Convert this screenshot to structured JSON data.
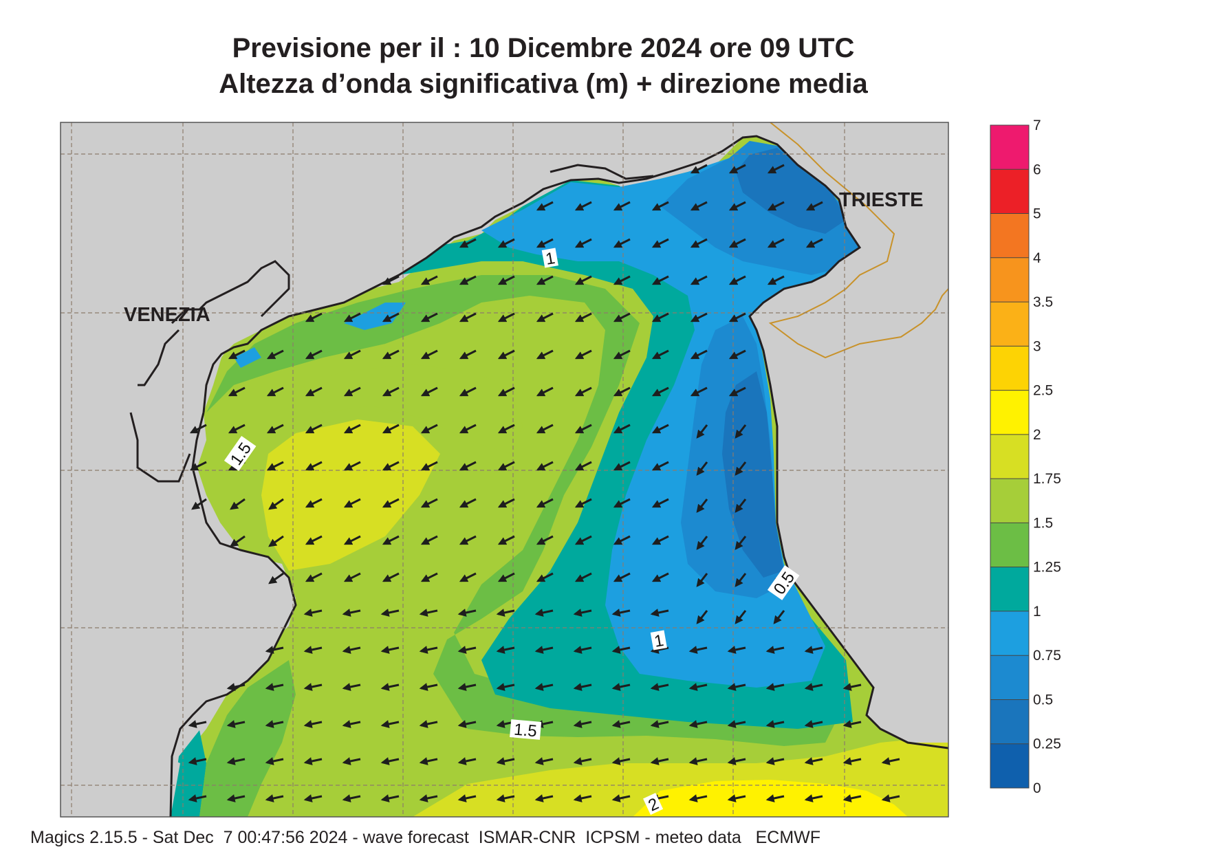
{
  "title": {
    "line1": "Previsione per il  :  10 Dicembre  2024   ore 09 UTC",
    "line2": "Altezza d’onda significativa (m) + direzione media"
  },
  "cities": {
    "venezia": "VENEZIA",
    "trieste": "TRIESTE"
  },
  "contour_labels": {
    "c1_north": "1",
    "c15_west": "1.5",
    "c05_east": "0.5",
    "c1_south": "1",
    "c15_south": "1.5",
    "c2_south": "2"
  },
  "colorbar": {
    "ticks": [
      "7",
      "6",
      "5",
      "4",
      "3.5",
      "3",
      "2.5",
      "2",
      "1.75",
      "1.5",
      "1.25",
      "1",
      "0.75",
      "0.5",
      "0.25",
      "0"
    ],
    "colors": [
      "#ee1a6e",
      "#ec2027",
      "#f37621",
      "#f7941d",
      "#fbb117",
      "#fdd304",
      "#fff200",
      "#d7df23",
      "#a6ce39",
      "#6cbe45",
      "#00a99d",
      "#1d9fe0",
      "#1c8ad0",
      "#1a75bc",
      "#0f60ad"
    ]
  },
  "map_colors": {
    "land": "#cdcdcd",
    "coast": "#231f20",
    "border": "#c8922a",
    "grid": "#8c7b6b",
    "arrow": "#1e1e1e"
  },
  "field": {
    "wave_direction": "SW",
    "units": "m"
  },
  "footer": "Magics 2.15.5 - Sat Dec  7 00:47:56 2024 - wave forecast  ISMAR-CNR  ICPSM - meteo data   ECMWF"
}
